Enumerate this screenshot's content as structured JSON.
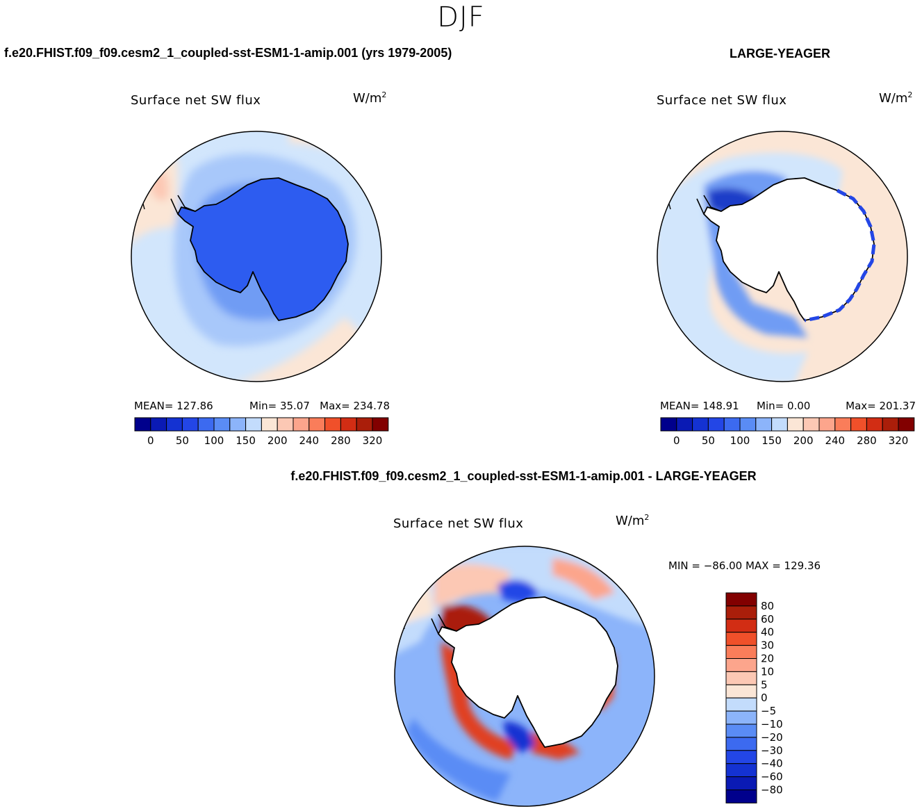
{
  "header": {
    "season": "DJF",
    "test_case": "f.e20.FHIST.f09_f09.cesm2_1_coupled-sst-ESM1-1-amip.001 (yrs 1979-2005)",
    "obs_case": "LARGE-YEAGER",
    "diff_case": "f.e20.FHIST.f09_f09.cesm2_1_coupled-sst-ESM1-1-amip.001 - LARGE-YEAGER"
  },
  "panels": {
    "test": {
      "variable": "Surface net SW flux",
      "units_base": "W/m",
      "units_exp": "2",
      "mean_label": "MEAN= 127.86",
      "min_label": "Min=   35.07",
      "max_label": "Max= 234.78"
    },
    "obs": {
      "variable": "Surface net SW flux",
      "units_base": "W/m",
      "units_exp": "2",
      "mean_label": "MEAN= 148.91",
      "min_label": "Min=    0.00",
      "max_label": "Max= 201.37"
    },
    "diff": {
      "variable": "Surface net SW flux",
      "units_base": "W/m",
      "units_exp": "2",
      "minmax_label": "MIN = −86.00 MAX = 129.36"
    }
  },
  "colorbars": {
    "abs": {
      "colors": [
        "#00008c",
        "#0a1ab4",
        "#1432d2",
        "#2346e6",
        "#3c6af0",
        "#5a8cf5",
        "#8cb4fa",
        "#c3dcfc",
        "#fbe6d6",
        "#fcc8b4",
        "#fca58c",
        "#fa7d5a",
        "#f0502a",
        "#d22d14",
        "#aa1e0a",
        "#820000"
      ],
      "tick_labels": [
        "0",
        "50",
        "100",
        "150",
        "200",
        "240",
        "280",
        "320"
      ]
    },
    "diff": {
      "colors": [
        "#00008c",
        "#0a1ab4",
        "#1432d2",
        "#2346e6",
        "#3c6af0",
        "#5a8cf5",
        "#8cb4fa",
        "#c3dcfc",
        "#fbe6d6",
        "#fcc8b4",
        "#fca58c",
        "#fa7d5a",
        "#f0502a",
        "#d22d14",
        "#aa1e0a",
        "#820000"
      ],
      "tick_labels": [
        "80",
        "60",
        "40",
        "30",
        "20",
        "10",
        "5",
        "0",
        "−5",
        "−10",
        "−20",
        "−30",
        "−40",
        "−60",
        "−80"
      ]
    }
  },
  "chart_data": [
    {
      "type": "heatmap",
      "projection": "south polar stereographic",
      "title": "Surface net SW flux",
      "units": "W/m2",
      "season": "DJF",
      "case": "f.e20.FHIST.f09_f09.cesm2_1_coupled-sst-ESM1-1-amip.001 (yrs 1979-2005)",
      "mean": 127.86,
      "min": 35.07,
      "max": 234.78,
      "contour_levels": [
        0,
        25,
        50,
        75,
        100,
        125,
        150,
        175,
        200,
        220,
        240,
        260,
        280,
        300,
        320
      ]
    },
    {
      "type": "heatmap",
      "projection": "south polar stereographic",
      "title": "Surface net SW flux",
      "units": "W/m2",
      "season": "DJF",
      "case": "LARGE-YEAGER",
      "mean": 148.91,
      "min": 0.0,
      "max": 201.37,
      "contour_levels": [
        0,
        25,
        50,
        75,
        100,
        125,
        150,
        175,
        200,
        220,
        240,
        260,
        280,
        300,
        320
      ]
    },
    {
      "type": "heatmap",
      "projection": "south polar stereographic",
      "title": "Surface net SW flux",
      "units": "W/m2",
      "season": "DJF",
      "case": "f.e20.FHIST.f09_f09.cesm2_1_coupled-sst-ESM1-1-amip.001 - LARGE-YEAGER",
      "min": -86.0,
      "max": 129.36,
      "contour_levels": [
        -80,
        -60,
        -40,
        -30,
        -20,
        -10,
        -5,
        0,
        5,
        10,
        20,
        30,
        40,
        60,
        80
      ]
    }
  ]
}
